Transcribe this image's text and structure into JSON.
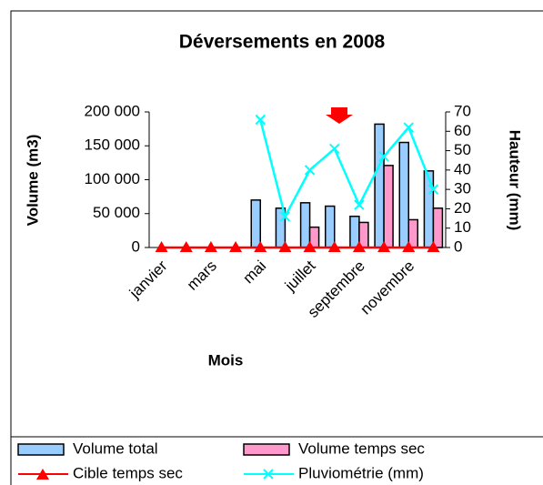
{
  "chart_data": {
    "type": "bar",
    "title": "Déversements en 2008",
    "x_label": "Mois",
    "y_label": "Volume (m3)",
    "y2_label": "Hauteur (mm)",
    "categories": [
      "janvier",
      null,
      "mars",
      null,
      "mai",
      null,
      "juillet",
      null,
      "septembre",
      null,
      "novembre",
      null
    ],
    "ylim": [
      0,
      200000
    ],
    "yticks": [
      0,
      {
        "value": 50000,
        "label": "50 000"
      },
      {
        "value": 100000,
        "label": "100 000"
      },
      {
        "value": 150000,
        "label": "150 000"
      },
      {
        "value": 200000,
        "label": "200 000"
      }
    ],
    "y2lim": [
      0,
      70
    ],
    "y2ticks": [
      0,
      10,
      20,
      30,
      40,
      50,
      60,
      70
    ],
    "series": [
      {
        "name": "Volume total",
        "type": "bar",
        "color": "#99ccff",
        "values": [
          0,
          0,
          0,
          0,
          70000,
          58000,
          66000,
          61000,
          46000,
          182000,
          155000,
          113000
        ]
      },
      {
        "name": "Volume temps sec",
        "type": "bar",
        "color": "#ff99cc",
        "values": [
          0,
          0,
          0,
          0,
          0,
          0,
          30000,
          0,
          37000,
          121000,
          41000,
          58000
        ]
      },
      {
        "name": "Cible temps sec",
        "type": "line",
        "marker": "triangle",
        "color": "#ff0000",
        "values": [
          0,
          0,
          0,
          0,
          0,
          0,
          0,
          0,
          0,
          0,
          0,
          0
        ]
      },
      {
        "name": "Pluviométrie (mm)",
        "type": "line",
        "marker": "x",
        "axis": "y2",
        "color": "#00ffff",
        "values": [
          null,
          null,
          null,
          null,
          66,
          16,
          40,
          51,
          22,
          47,
          62,
          30
        ]
      }
    ]
  }
}
